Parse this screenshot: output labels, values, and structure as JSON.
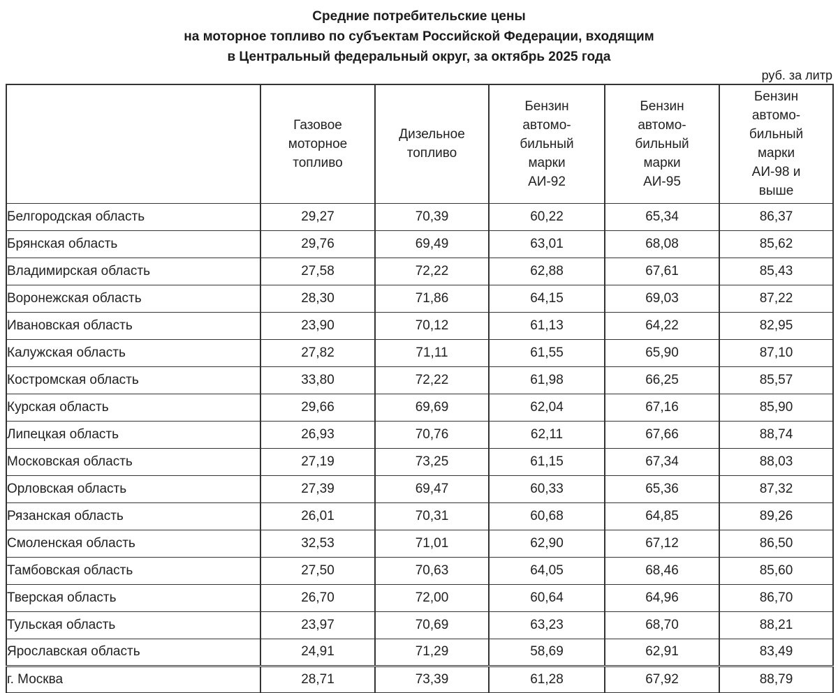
{
  "title": "Средние потребительские цены\nна моторное топливо по субъектам Российской Федерации, входящим\nв Центральный федеральный округ, за октябрь 2025 года",
  "unit_label": "руб. за литр",
  "table": {
    "region_header": "",
    "columns": [
      "Газовое\nмоторное\nтопливо",
      "Дизельное\nтопливо",
      "Бензин\nавтомо-\nбильный\nмарки\nАИ-92",
      "Бензин\nавтомо-\nбильный\nмарки\nАИ-95",
      "Бензин\nавтомо-\nбильный\nмарки\nАИ-98 и\nвыше"
    ],
    "rows": [
      {
        "region": "Белгородская область",
        "values": [
          "29,27",
          "70,39",
          "60,22",
          "65,34",
          "86,37"
        ]
      },
      {
        "region": "Брянская область",
        "values": [
          "29,76",
          "69,49",
          "63,01",
          "68,08",
          "85,62"
        ]
      },
      {
        "region": "Владимирская область",
        "values": [
          "27,58",
          "72,22",
          "62,88",
          "67,61",
          "85,43"
        ]
      },
      {
        "region": "Воронежская область",
        "values": [
          "28,30",
          "71,86",
          "64,15",
          "69,03",
          "87,22"
        ]
      },
      {
        "region": "Ивановская область",
        "values": [
          "23,90",
          "70,12",
          "61,13",
          "64,22",
          "82,95"
        ]
      },
      {
        "region": "Калужская область",
        "values": [
          "27,82",
          "71,11",
          "61,55",
          "65,90",
          "87,10"
        ]
      },
      {
        "region": "Костромская область",
        "values": [
          "33,80",
          "72,22",
          "61,98",
          "66,25",
          "85,57"
        ]
      },
      {
        "region": "Курская область",
        "values": [
          "29,66",
          "69,69",
          "62,04",
          "67,16",
          "85,90"
        ]
      },
      {
        "region": "Липецкая область",
        "values": [
          "26,93",
          "70,76",
          "62,11",
          "67,66",
          "88,74"
        ]
      },
      {
        "region": "Московская область",
        "values": [
          "27,19",
          "73,25",
          "61,15",
          "67,34",
          "88,03"
        ]
      },
      {
        "region": "Орловская область",
        "values": [
          "27,39",
          "69,47",
          "60,33",
          "65,36",
          "87,32"
        ]
      },
      {
        "region": "Рязанская область",
        "values": [
          "26,01",
          "70,31",
          "60,68",
          "64,85",
          "89,26"
        ]
      },
      {
        "region": "Смоленская область",
        "values": [
          "32,53",
          "71,01",
          "62,90",
          "67,12",
          "86,50"
        ]
      },
      {
        "region": "Тамбовская область",
        "values": [
          "27,50",
          "70,63",
          "64,05",
          "68,46",
          "85,60"
        ]
      },
      {
        "region": "Тверская область",
        "values": [
          "26,70",
          "72,00",
          "60,64",
          "64,96",
          "86,70"
        ]
      },
      {
        "region": "Тульская область",
        "values": [
          "23,97",
          "70,69",
          "63,23",
          "68,70",
          "88,21"
        ]
      },
      {
        "region": "Ярославская область",
        "values": [
          "24,91",
          "71,29",
          "58,69",
          "62,91",
          "83,49"
        ]
      },
      {
        "region": "г. Москва",
        "values": [
          "28,71",
          "73,39",
          "61,28",
          "67,92",
          "88,79"
        ]
      }
    ]
  },
  "colors": {
    "text": "#1f1f1f",
    "border": "#333333",
    "background": "#ffffff"
  }
}
